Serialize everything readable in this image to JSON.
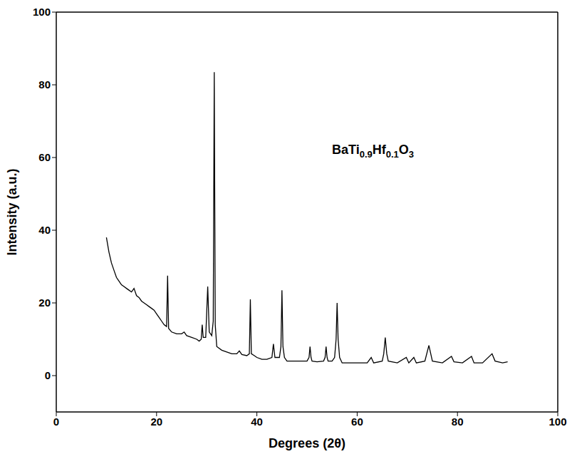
{
  "chart_data": {
    "type": "line",
    "annotations": [
      "BaTi0.9Hf0.1O3"
    ],
    "x_label": "Degrees (2θ)",
    "y_label": "Intensity (a.u.)",
    "color": "#000000",
    "grid": false,
    "xlim": [
      0,
      100
    ],
    "xticks": [
      0,
      20,
      40,
      60,
      80,
      100
    ],
    "ylim": [
      -10,
      100
    ],
    "yticks": [
      0,
      20,
      40,
      60,
      80,
      100
    ],
    "x": [
      10,
      10.5,
      11,
      11.5,
      12,
      12.5,
      13,
      13.5,
      14,
      14.5,
      15,
      15.5,
      16,
      16.5,
      17,
      17.5,
      18,
      18.5,
      19,
      19.5,
      20,
      20.5,
      21,
      21.5,
      22,
      22.2,
      22.4,
      23,
      24,
      25,
      25.5,
      26,
      27,
      28,
      28.5,
      28.9,
      29.1,
      29.3,
      29.8,
      30.2,
      30.5,
      31,
      31.3,
      31.5,
      31.7,
      32,
      33,
      34,
      35,
      36,
      36.5,
      37,
      38,
      38.5,
      38.7,
      38.9,
      39.5,
      40,
      41,
      42,
      43,
      43.3,
      43.6,
      44.5,
      44.8,
      45,
      45.2,
      45.5,
      46,
      48,
      50,
      50.4,
      50.6,
      50.8,
      51,
      52,
      53.3,
      53.6,
      53.8,
      54,
      54.2,
      55,
      55.5,
      55.8,
      56,
      56.2,
      56.5,
      57,
      60,
      62,
      62.8,
      63.3,
      65,
      65.3,
      65.6,
      65.9,
      66.2,
      68,
      69.8,
      70.3,
      71.3,
      71.8,
      73.5,
      74.3,
      75,
      77,
      78.8,
      79.3,
      81,
      82.8,
      83.3,
      85,
      86.9,
      87.5,
      89,
      90
    ],
    "values": [
      38,
      34,
      31,
      29,
      27,
      26,
      25,
      24.5,
      24,
      23.5,
      23,
      24,
      22,
      21.5,
      20.5,
      20,
      19.5,
      19,
      18.5,
      18,
      17,
      16,
      15,
      14,
      13.5,
      27.5,
      13,
      12,
      11.5,
      11.5,
      12,
      11,
      10.5,
      10,
      9.5,
      10,
      14,
      10.5,
      10.5,
      24.5,
      12,
      11,
      15,
      83.5,
      14,
      8,
      7,
      6.5,
      6,
      6,
      6.8,
      5.8,
      5.5,
      6,
      21,
      6,
      5.5,
      5,
      4.5,
      4.5,
      5,
      8.7,
      5,
      5,
      8,
      23.5,
      8,
      5,
      4,
      4,
      4,
      5,
      8,
      5,
      4,
      3.8,
      4,
      5,
      8,
      5,
      4,
      4,
      5,
      10,
      20,
      10,
      5,
      3.5,
      3.5,
      3.5,
      5,
      3.5,
      4,
      6,
      10.5,
      6,
      4,
      3.5,
      5,
      3.5,
      5,
      3.5,
      4,
      8.3,
      4,
      3.5,
      5.3,
      3.8,
      3.5,
      5.3,
      3.5,
      3.5,
      6,
      4,
      3.5,
      3.8
    ]
  }
}
